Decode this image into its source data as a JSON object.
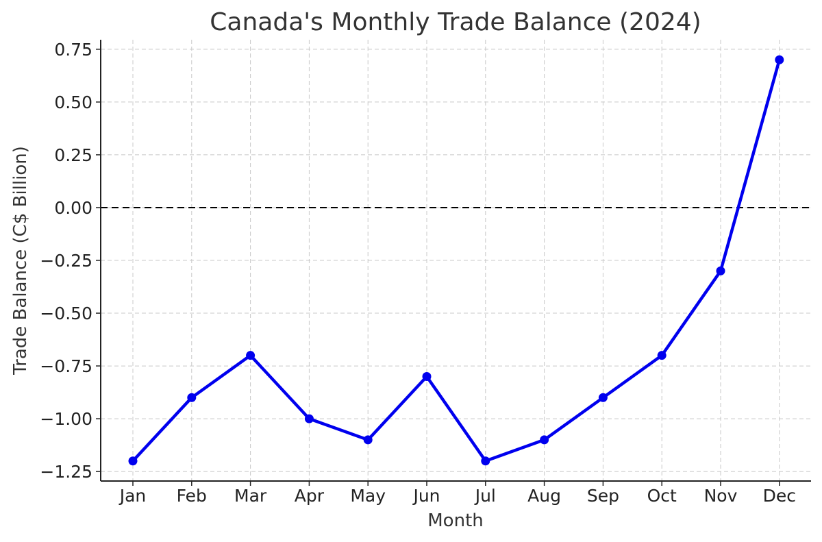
{
  "chart_data": {
    "type": "line",
    "title": "Canada's Monthly Trade Balance (2024)",
    "xlabel": "Month",
    "ylabel": "Trade Balance (C$ Billion)",
    "categories": [
      "Jan",
      "Feb",
      "Mar",
      "Apr",
      "May",
      "Jun",
      "Jul",
      "Aug",
      "Sep",
      "Oct",
      "Nov",
      "Dec"
    ],
    "series": [
      {
        "values": [
          -1.2,
          -0.9,
          -0.7,
          -1.0,
          -1.1,
          -0.8,
          -1.2,
          -1.1,
          -0.9,
          -0.7,
          -0.3,
          0.7
        ]
      }
    ],
    "ylim": [
      -1.295,
      0.795
    ],
    "yticks": [
      -1.25,
      -1.0,
      -0.75,
      -0.5,
      -0.25,
      0.0,
      0.25,
      0.5,
      0.75
    ],
    "ytick_labels": [
      "−1.25",
      "−1.00",
      "−0.75",
      "−0.50",
      "−0.25",
      "0.00",
      "0.25",
      "0.50",
      "0.75"
    ],
    "reference_line": {
      "y": 0.0,
      "style": "dashed",
      "color": "#000000"
    },
    "grid": true,
    "line_color": "#0000ee",
    "marker": "circle"
  }
}
